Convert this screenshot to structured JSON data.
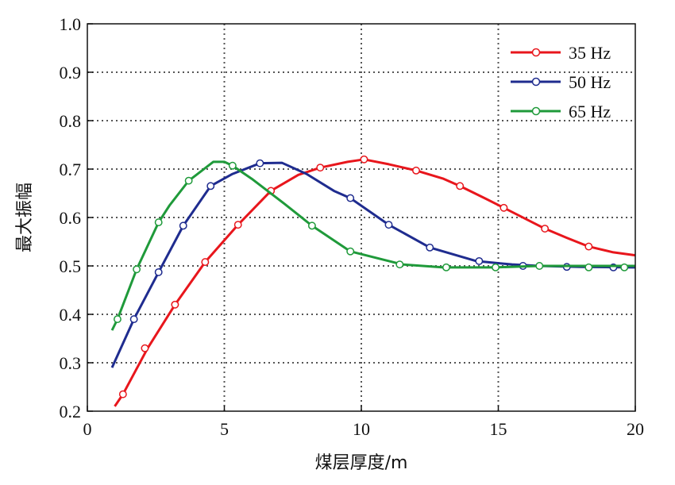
{
  "chart_data": {
    "type": "line",
    "title": "",
    "xlabel": "煤层厚度/m",
    "ylabel": "最大振幅",
    "xlim": [
      0,
      20
    ],
    "ylim": [
      0.2,
      1.0
    ],
    "x_ticks": [
      "0",
      "5",
      "10",
      "15",
      "20"
    ],
    "y_ticks": [
      "0.2",
      "0.3",
      "0.4",
      "0.5",
      "0.6",
      "0.7",
      "0.8",
      "0.9",
      "1.0"
    ],
    "grid": "dotted",
    "legend_position": "top-right",
    "series": [
      {
        "name": "35 Hz",
        "color": "#e8161c",
        "x": [
          1.0,
          1.3,
          2.2,
          3.2,
          4.3,
          5.5,
          6.7,
          7.7,
          8.5,
          9.5,
          10.1,
          11.0,
          12.0,
          13.0,
          13.6,
          14.5,
          15.2,
          16.0,
          16.7,
          17.5,
          18.3,
          19.2,
          20.0
        ],
        "y": [
          0.21,
          0.235,
          0.33,
          0.42,
          0.508,
          0.585,
          0.655,
          0.688,
          0.703,
          0.715,
          0.72,
          0.71,
          0.697,
          0.68,
          0.665,
          0.64,
          0.62,
          0.597,
          0.577,
          0.558,
          0.54,
          0.528,
          0.522
        ],
        "markers_x": [
          1.3,
          2.1,
          3.2,
          4.3,
          5.5,
          6.7,
          8.5,
          10.1,
          12.0,
          13.6,
          15.2,
          16.7,
          18.3
        ],
        "markers_y": [
          0.235,
          0.33,
          0.42,
          0.508,
          0.585,
          0.655,
          0.703,
          0.72,
          0.697,
          0.665,
          0.62,
          0.577,
          0.54
        ]
      },
      {
        "name": "50 Hz",
        "color": "#1f2c8f",
        "x": [
          0.9,
          1.7,
          2.6,
          3.5,
          4.5,
          5.3,
          6.3,
          7.1,
          8.0,
          9.0,
          9.6,
          11.0,
          12.5,
          14.2,
          15.5,
          16.5,
          18.0,
          20.0
        ],
        "y": [
          0.29,
          0.39,
          0.487,
          0.583,
          0.665,
          0.69,
          0.712,
          0.713,
          0.69,
          0.655,
          0.64,
          0.585,
          0.538,
          0.51,
          0.503,
          0.5,
          0.498,
          0.497
        ],
        "markers_x": [
          1.7,
          2.6,
          3.5,
          4.5,
          6.3,
          9.6,
          11.0,
          12.5,
          14.3,
          15.9,
          17.5,
          19.2
        ],
        "markers_y": [
          0.39,
          0.487,
          0.583,
          0.665,
          0.712,
          0.64,
          0.585,
          0.538,
          0.51,
          0.5,
          0.498,
          0.497
        ]
      },
      {
        "name": "65 Hz",
        "color": "#1f9a3a",
        "x": [
          0.9,
          1.1,
          1.8,
          2.6,
          3.0,
          3.7,
          4.6,
          5.0,
          5.3,
          6.0,
          7.2,
          8.2,
          9.6,
          11.5,
          13.0,
          14.9,
          16.5,
          18.0,
          20.0
        ],
        "y": [
          0.367,
          0.39,
          0.493,
          0.59,
          0.625,
          0.676,
          0.715,
          0.715,
          0.707,
          0.68,
          0.628,
          0.583,
          0.53,
          0.503,
          0.497,
          0.497,
          0.5,
          0.5,
          0.5
        ],
        "markers_x": [
          1.1,
          1.8,
          2.6,
          3.7,
          5.3,
          8.2,
          9.6,
          11.4,
          13.1,
          14.9,
          16.5,
          18.3,
          19.6
        ],
        "markers_y": [
          0.39,
          0.493,
          0.59,
          0.676,
          0.707,
          0.583,
          0.53,
          0.503,
          0.497,
          0.497,
          0.5,
          0.497,
          0.497
        ]
      }
    ]
  }
}
